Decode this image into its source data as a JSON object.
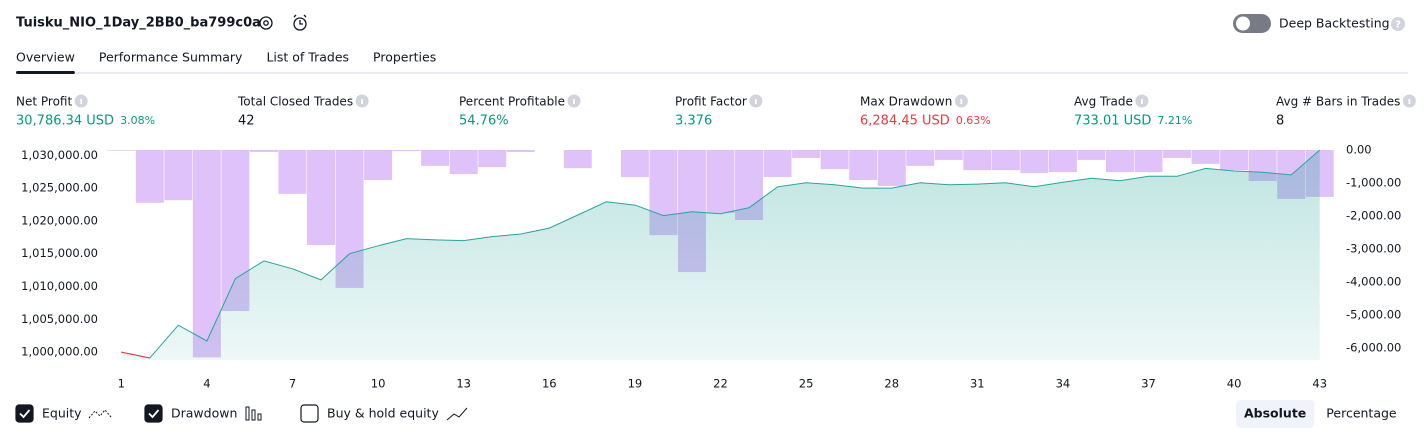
{
  "header": {
    "title": "Tuisku_NIO_1Day_2BB0_ba799c0a",
    "toggle_label": "Deep Backtesting",
    "toggle_on": false
  },
  "tabs": [
    "Overview",
    "Performance Summary",
    "List of Trades",
    "Properties"
  ],
  "active_tab": 0,
  "metrics": [
    {
      "label": "Net Profit",
      "value": "30,786.34 USD",
      "percent": "3.08%",
      "tone": "positive"
    },
    {
      "label": "Total Closed Trades",
      "value": "42",
      "tone": "neutral"
    },
    {
      "label": "Percent Profitable",
      "value": "54.76%",
      "tone": "positive"
    },
    {
      "label": "Profit Factor",
      "value": "3.376",
      "tone": "positive"
    },
    {
      "label": "Max Drawdown",
      "value": "6,284.45 USD",
      "percent": "0.63%",
      "tone": "negative"
    },
    {
      "label": "Avg Trade",
      "value": "733.01 USD",
      "percent": "7.21%",
      "tone": "positive"
    },
    {
      "label": "Avg # Bars in Trades",
      "value": "8",
      "tone": "neutral"
    }
  ],
  "chart_data": {
    "type": "line",
    "x": [
      1,
      2,
      3,
      4,
      5,
      6,
      7,
      8,
      9,
      10,
      11,
      12,
      13,
      14,
      15,
      16,
      17,
      18,
      19,
      20,
      21,
      22,
      23,
      24,
      25,
      26,
      27,
      28,
      29,
      30,
      31,
      32,
      33,
      34,
      35,
      36,
      37,
      38,
      39,
      40,
      41,
      42,
      43
    ],
    "series": [
      {
        "name": "Equity",
        "color": "#26a69a",
        "negative_color": "#f23645",
        "checked": true,
        "values": [
          1000000,
          999100,
          1004100,
          1001700,
          1011200,
          1013900,
          1012700,
          1011000,
          1015000,
          1016200,
          1017300,
          1017100,
          1017000,
          1017600,
          1018000,
          1018900,
          1020900,
          1022900,
          1022400,
          1020800,
          1021400,
          1021100,
          1022000,
          1025200,
          1025800,
          1025500,
          1025000,
          1025000,
          1025800,
          1025500,
          1025600,
          1025800,
          1025200,
          1025900,
          1026500,
          1026100,
          1026800,
          1026800,
          1028000,
          1027600,
          1027400,
          1027000,
          1030786
        ]
      },
      {
        "name": "Drawdown",
        "type": "bar",
        "axis": "y2",
        "color": "#c99af5",
        "checked": true,
        "values": [
          -20,
          -1600,
          -1520,
          -6284,
          -4880,
          -60,
          -1330,
          -2880,
          -4180,
          -910,
          -30,
          -480,
          -730,
          -520,
          -60,
          0,
          -550,
          0,
          -820,
          -2580,
          -3700,
          -1910,
          -2120,
          -820,
          -240,
          -580,
          -910,
          -1090,
          -480,
          -300,
          -610,
          -610,
          -700,
          -670,
          -300,
          -670,
          -670,
          -240,
          -420,
          -610,
          -940,
          -1480,
          -1420
        ]
      }
    ],
    "xlim": [
      0.5,
      43.5
    ],
    "xticks": [
      1,
      4,
      7,
      10,
      13,
      16,
      19,
      22,
      25,
      28,
      31,
      34,
      37,
      40,
      43
    ],
    "ylim": [
      998800,
      1030800
    ],
    "yticks": [
      {
        "value": 1000000,
        "label": "1,000,000.00"
      },
      {
        "value": 1005000,
        "label": "1,005,000.00"
      },
      {
        "value": 1010000,
        "label": "1,010,000.00"
      },
      {
        "value": 1015000,
        "label": "1,015,000.00"
      },
      {
        "value": 1020000,
        "label": "1,020,000.00"
      },
      {
        "value": 1025000,
        "label": "1,025,000.00"
      },
      {
        "value": 1030000,
        "label": "1,030,000.00"
      }
    ],
    "y2lim": [
      -6364,
      0
    ],
    "y2ticks": [
      {
        "value": 0,
        "label": "0.00"
      },
      {
        "value": -1000,
        "label": "-1,000.00"
      },
      {
        "value": -2000,
        "label": "-2,000.00"
      },
      {
        "value": -3000,
        "label": "-3,000.00"
      },
      {
        "value": -4000,
        "label": "-4,000.00"
      },
      {
        "value": -5000,
        "label": "-5,000.00"
      },
      {
        "value": -6000,
        "label": "-6,000.00"
      }
    ]
  },
  "options": [
    {
      "label": "Buy & hold equity",
      "checked": false
    }
  ],
  "buttons": [
    "Absolute",
    "Percentage"
  ],
  "active_button": 0
}
